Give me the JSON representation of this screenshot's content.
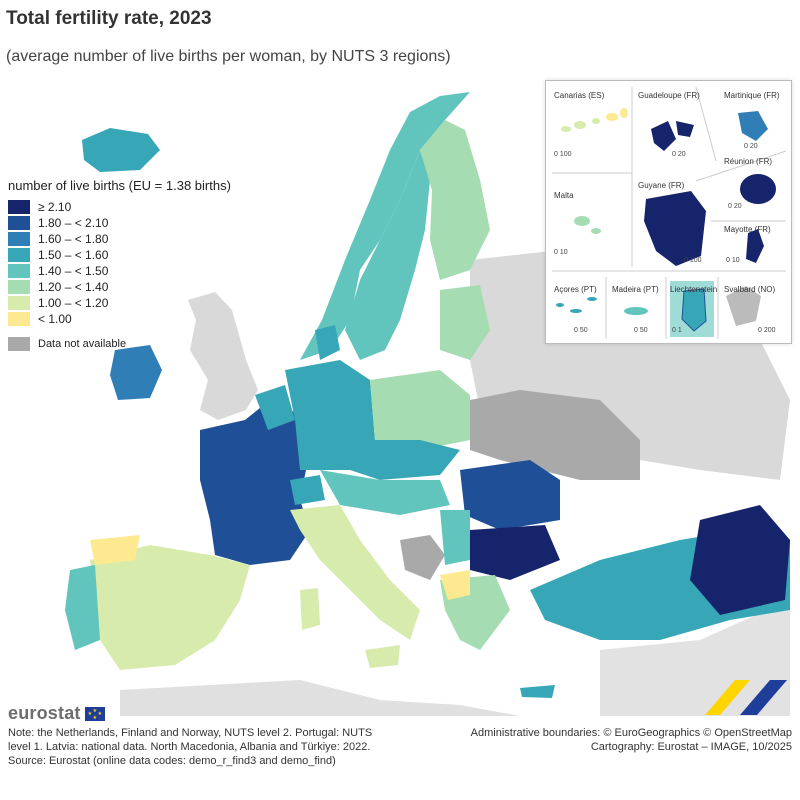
{
  "title": "Total fertility rate, 2023",
  "subtitle": "(average number of live births per woman, by NUTS 3 regions)",
  "legend": {
    "title": "number of live births (EU = 1.38 births)",
    "classes": [
      {
        "label": "≥ 2.10",
        "color": "#15246b"
      },
      {
        "label": "1.80 – < 2.10",
        "color": "#1f4f96"
      },
      {
        "label": "1.60 – < 1.80",
        "color": "#2f7fb6"
      },
      {
        "label": "1.50 – < 1.60",
        "color": "#37a7b8"
      },
      {
        "label": "1.40 – < 1.50",
        "color": "#61c5bd"
      },
      {
        "label": "1.20 – < 1.40",
        "color": "#a5dcb1"
      },
      {
        "label": "1.00 – < 1.20",
        "color": "#d7ebac"
      },
      {
        "label": "< 1.00",
        "color": "#fde98f"
      }
    ],
    "not_available": {
      "label": "Data not available",
      "color": "#a9a9a9"
    }
  },
  "insets": {
    "canarias": {
      "label": "Canarias (ES)",
      "scale": "0  100"
    },
    "guadeloupe": {
      "label": "Guadeloupe (FR)",
      "scale": "0  20"
    },
    "martinique": {
      "label": "Martinique (FR)",
      "scale": "0  20"
    },
    "reunion": {
      "label": "Réunion (FR)",
      "scale": "0  20"
    },
    "malta": {
      "label": "Malta",
      "scale": "0  10"
    },
    "guyane": {
      "label": "Guyane (FR)",
      "scale": "0  100"
    },
    "mayotte": {
      "label": "Mayotte (FR)",
      "scale": "0  10"
    },
    "acores": {
      "label": "Açores (PT)",
      "scale": "0  50"
    },
    "madeira": {
      "label": "Madeira (PT)",
      "scale": "0  50"
    },
    "liechtenstein": {
      "label": "Liechtenstein",
      "scale": "0  1"
    },
    "svalbard": {
      "label": "Svalbard (NO)",
      "scale": "0  200"
    }
  },
  "logo": {
    "text": "eurostat"
  },
  "note": {
    "line1": "Note: the Netherlands, Finland and Norway, NUTS level 2. Portugal: NUTS",
    "line2": "level 1. Latvia: national data. North Macedonia, Albania and Türkiye: 2022.",
    "line3": "Source: Eurostat (online data codes: demo_r_find3 and demo_find)"
  },
  "credits": {
    "line1": "Administrative boundaries: © EuroGeographics © OpenStreetMap",
    "line2": "Cartography: Eurostat – IMAGE, 10/2025"
  }
}
